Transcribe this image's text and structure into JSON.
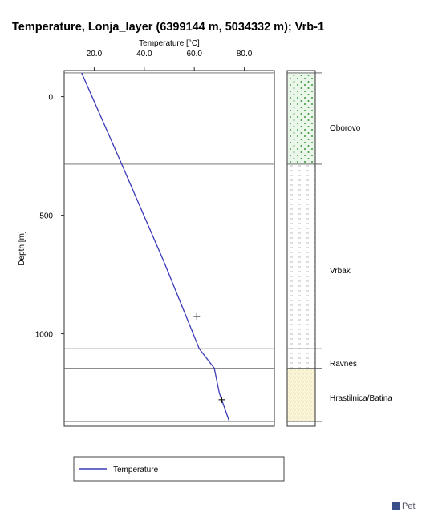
{
  "title": "Temperature, Lonja_layer (6399144 m, 5034332 m); Vrb-1",
  "legend": {
    "label": "Temperature"
  },
  "logo": {
    "text": "Pet"
  },
  "chart_data": {
    "type": "line",
    "title": "Temperature, Lonja_layer (6399144 m, 5034332 m); Vrb-1",
    "xlabel": "Temperature [°C]",
    "ylabel": "Depth [m]",
    "x_axis_position": "top",
    "xlim": [
      8,
      92
    ],
    "ylim": [
      1390,
      -110
    ],
    "y_inverted": true,
    "x_ticks": [
      20,
      40,
      60,
      80
    ],
    "x_tick_labels": [
      "20.0",
      "40.0",
      "60.0",
      "80.0"
    ],
    "y_ticks": [
      0,
      500,
      1000
    ],
    "y_tick_labels": [
      "0",
      "500",
      "1000"
    ],
    "boundaries": [
      -100,
      285,
      1063,
      1145,
      1370
    ],
    "series": [
      {
        "name": "Temperature",
        "color": "#3a3ab8",
        "x": [
          15,
          31,
          48,
          62,
          68,
          70,
          74
        ],
        "y": [
          -100,
          285,
          700,
          1063,
          1145,
          1250,
          1370
        ]
      }
    ],
    "measurements": [
      {
        "x": 61,
        "y": 927
      },
      {
        "x": 71,
        "y": 1278
      }
    ],
    "lithology": [
      {
        "name": "Oborovo",
        "top": -100,
        "bottom": 285,
        "pattern": "green-dots"
      },
      {
        "name": "Vrbak",
        "top": 285,
        "bottom": 1063,
        "pattern": "dashes"
      },
      {
        "name": "Ravnes",
        "top": 1063,
        "bottom": 1145,
        "pattern": "dashes"
      },
      {
        "name": "Hrastilnica/Batina",
        "top": 1145,
        "bottom": 1370,
        "pattern": "yellow-hatch"
      }
    ],
    "legend_position": "bottom-left",
    "grid": false
  }
}
